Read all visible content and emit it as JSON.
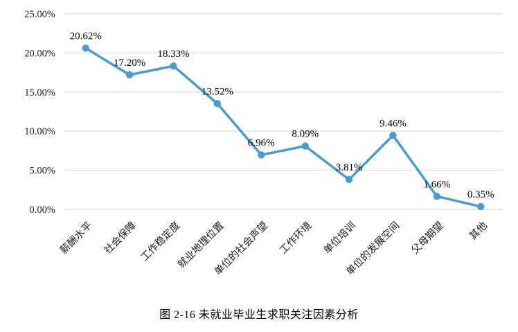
{
  "caption": "图 2-16  未就业毕业生求职关注因素分析",
  "chart_data": {
    "type": "line",
    "title": "",
    "xlabel": "",
    "ylabel": "",
    "categories": [
      "薪酬水平",
      "社会保障",
      "工作稳定度",
      "就业地理位置",
      "单位的社会声望",
      "工作环境",
      "单位培训",
      "单位的发展空间",
      "父母期望",
      "其他"
    ],
    "values": [
      20.62,
      17.2,
      18.33,
      13.52,
      6.96,
      8.09,
      3.81,
      9.46,
      1.66,
      0.35
    ],
    "data_labels": [
      "20.62%",
      "17.20%",
      "18.33%",
      "13.52%",
      "6.96%",
      "8.09%",
      "3.81%",
      "9.46%",
      "1.66%",
      "0.35%"
    ],
    "y_ticks": [
      0,
      5,
      10,
      15,
      20,
      25
    ],
    "y_tick_labels": [
      "0.00%",
      "5.00%",
      "10.00%",
      "15.00%",
      "20.00%",
      "25.00%"
    ],
    "ylim": [
      0,
      25
    ],
    "grid": true,
    "legend_position": "none",
    "line_color": "#4A9CCE",
    "marker_color": "#4A9CCE",
    "grid_color": "#D6D6D6",
    "axis_text_color": "#1a1a1a",
    "label_text_color": "#000000"
  }
}
